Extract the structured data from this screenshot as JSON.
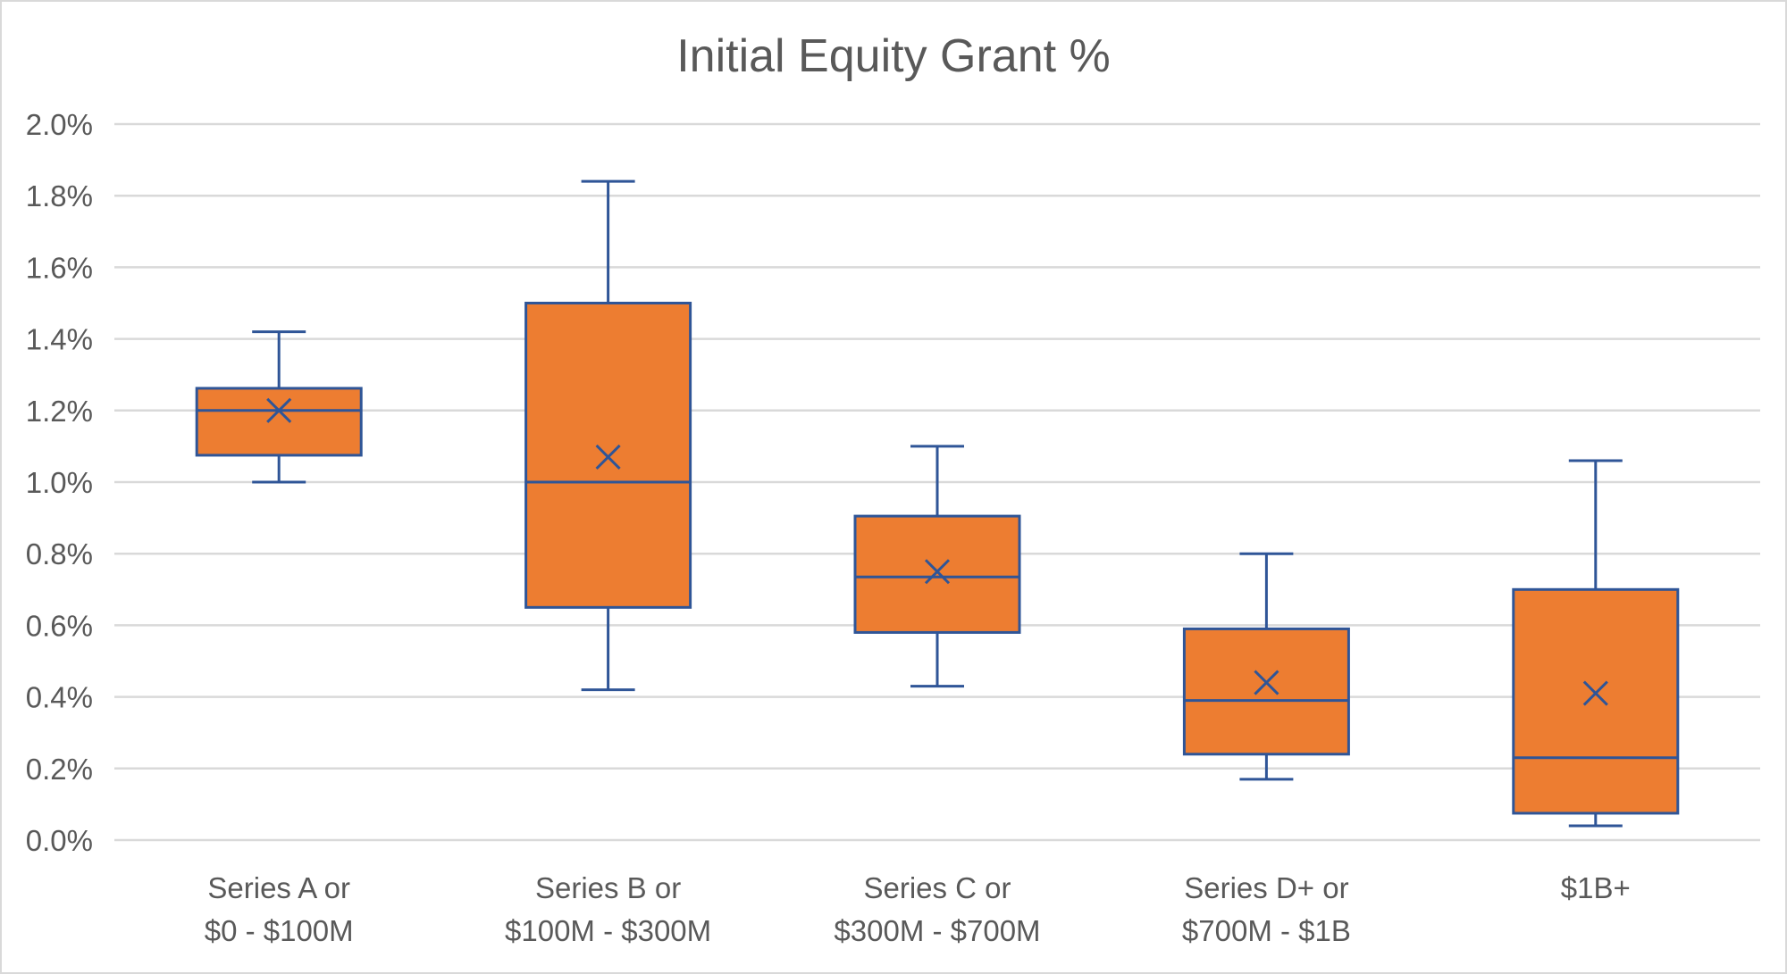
{
  "chart_data": {
    "type": "box",
    "title": "Initial Equity Grant %",
    "xlabel": "",
    "ylabel": "",
    "ylim": [
      0,
      0.02
    ],
    "yticks": [
      0,
      0.002,
      0.004,
      0.006,
      0.008,
      0.01,
      0.012,
      0.014,
      0.016,
      0.018,
      0.02
    ],
    "ytick_labels": [
      "0.0%",
      "0.2%",
      "0.4%",
      "0.6%",
      "0.8%",
      "1.0%",
      "1.2%",
      "1.4%",
      "1.6%",
      "1.8%",
      "2.0%"
    ],
    "grid": true,
    "legend": "none",
    "categories": [
      [
        "Series A or",
        "$0 - $100M"
      ],
      [
        "Series B or",
        "$100M - $300M"
      ],
      [
        "Series C or",
        "$300M - $700M"
      ],
      [
        "Series D+ or",
        "$700M - $1B"
      ],
      [
        "$1B+"
      ]
    ],
    "boxes": [
      {
        "min": 0.01,
        "q1": 0.01075,
        "median": 0.012,
        "q3": 0.01262,
        "max": 0.0142,
        "mean": 0.012
      },
      {
        "min": 0.0042,
        "q1": 0.0065,
        "median": 0.01,
        "q3": 0.015,
        "max": 0.0184,
        "mean": 0.0107
      },
      {
        "min": 0.0043,
        "q1": 0.0058,
        "median": 0.00735,
        "q3": 0.00905,
        "max": 0.011,
        "mean": 0.0075
      },
      {
        "min": 0.0017,
        "q1": 0.0024,
        "median": 0.0039,
        "q3": 0.0059,
        "max": 0.008,
        "mean": 0.0044
      },
      {
        "min": 0.0004,
        "q1": 0.00075,
        "median": 0.0023,
        "q3": 0.007,
        "max": 0.0106,
        "mean": 0.0041
      }
    ],
    "colors": {
      "box_fill": "#ed7d31",
      "box_stroke": "#2f5597",
      "grid": "#d9d9d9",
      "text": "#595959"
    }
  }
}
